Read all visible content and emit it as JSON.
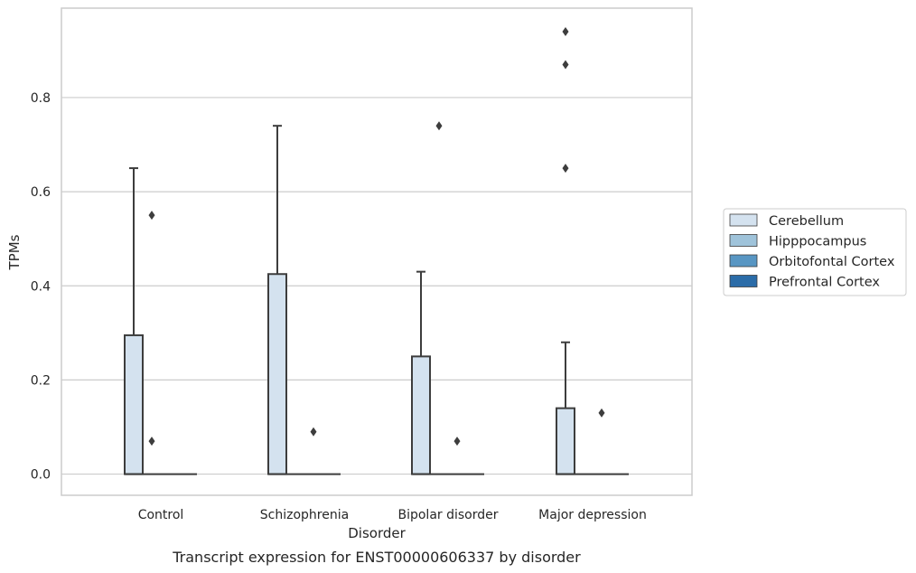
{
  "chart_data": {
    "type": "box",
    "title": "",
    "caption": "Transcript expression for ENST00000606337 by disorder",
    "xlabel": "Disorder",
    "ylabel": "TPMs",
    "ylim": [
      -0.045,
      0.99
    ],
    "yticks": [
      "0.0",
      "0.2",
      "0.4",
      "0.6",
      "0.8"
    ],
    "grid": true,
    "legend_position": "right",
    "categories": [
      "Control",
      "Schizophrenia",
      "Bipolar disorder",
      "Major depression"
    ],
    "series": [
      {
        "name": "Cerebellum",
        "color": "#d4e2ef",
        "boxes": [
          {
            "q1": 0.0,
            "median": 0.0,
            "q3": 0.295,
            "whisker_low": 0.0,
            "whisker_high": 0.65,
            "outliers": []
          },
          {
            "q1": 0.0,
            "median": 0.0,
            "q3": 0.425,
            "whisker_low": 0.0,
            "whisker_high": 0.74,
            "outliers": []
          },
          {
            "q1": 0.0,
            "median": 0.0,
            "q3": 0.25,
            "whisker_low": 0.0,
            "whisker_high": 0.43,
            "outliers": []
          },
          {
            "q1": 0.0,
            "median": 0.0,
            "q3": 0.14,
            "whisker_low": 0.0,
            "whisker_high": 0.28,
            "outliers": [
              0.65,
              0.87,
              0.94
            ]
          }
        ]
      },
      {
        "name": "Hipppocampus",
        "color": "#9fc3da",
        "boxes": [
          {
            "q1": 0.0,
            "median": 0.0,
            "q3": 0.0,
            "whisker_low": 0.0,
            "whisker_high": 0.0,
            "outliers": [
              0.55,
              0.07
            ]
          },
          {
            "q1": 0.0,
            "median": 0.0,
            "q3": 0.0,
            "whisker_low": 0.0,
            "whisker_high": 0.0,
            "outliers": []
          },
          {
            "q1": 0.0,
            "median": 0.0,
            "q3": 0.0,
            "whisker_low": 0.0,
            "whisker_high": 0.0,
            "outliers": [
              0.74
            ]
          },
          {
            "q1": 0.0,
            "median": 0.0,
            "q3": 0.0,
            "whisker_low": 0.0,
            "whisker_high": 0.0,
            "outliers": []
          }
        ]
      },
      {
        "name": "Orbitofontal Cortex",
        "color": "#5896c3",
        "boxes": [
          {
            "q1": 0.0,
            "median": 0.0,
            "q3": 0.0,
            "whisker_low": 0.0,
            "whisker_high": 0.0,
            "outliers": []
          },
          {
            "q1": 0.0,
            "median": 0.0,
            "q3": 0.0,
            "whisker_low": 0.0,
            "whisker_high": 0.0,
            "outliers": [
              0.09
            ]
          },
          {
            "q1": 0.0,
            "median": 0.0,
            "q3": 0.0,
            "whisker_low": 0.0,
            "whisker_high": 0.0,
            "outliers": [
              0.07
            ]
          },
          {
            "q1": 0.0,
            "median": 0.0,
            "q3": 0.0,
            "whisker_low": 0.0,
            "whisker_high": 0.0,
            "outliers": [
              0.13
            ]
          }
        ]
      },
      {
        "name": "Prefrontal Cortex",
        "color": "#2b6ca8",
        "boxes": [
          {
            "q1": 0.0,
            "median": 0.0,
            "q3": 0.0,
            "whisker_low": 0.0,
            "whisker_high": 0.0,
            "outliers": []
          },
          {
            "q1": 0.0,
            "median": 0.0,
            "q3": 0.0,
            "whisker_low": 0.0,
            "whisker_high": 0.0,
            "outliers": []
          },
          {
            "q1": 0.0,
            "median": 0.0,
            "q3": 0.0,
            "whisker_low": 0.0,
            "whisker_high": 0.0,
            "outliers": []
          },
          {
            "q1": 0.0,
            "median": 0.0,
            "q3": 0.0,
            "whisker_low": 0.0,
            "whisker_high": 0.0,
            "outliers": []
          }
        ]
      }
    ]
  }
}
